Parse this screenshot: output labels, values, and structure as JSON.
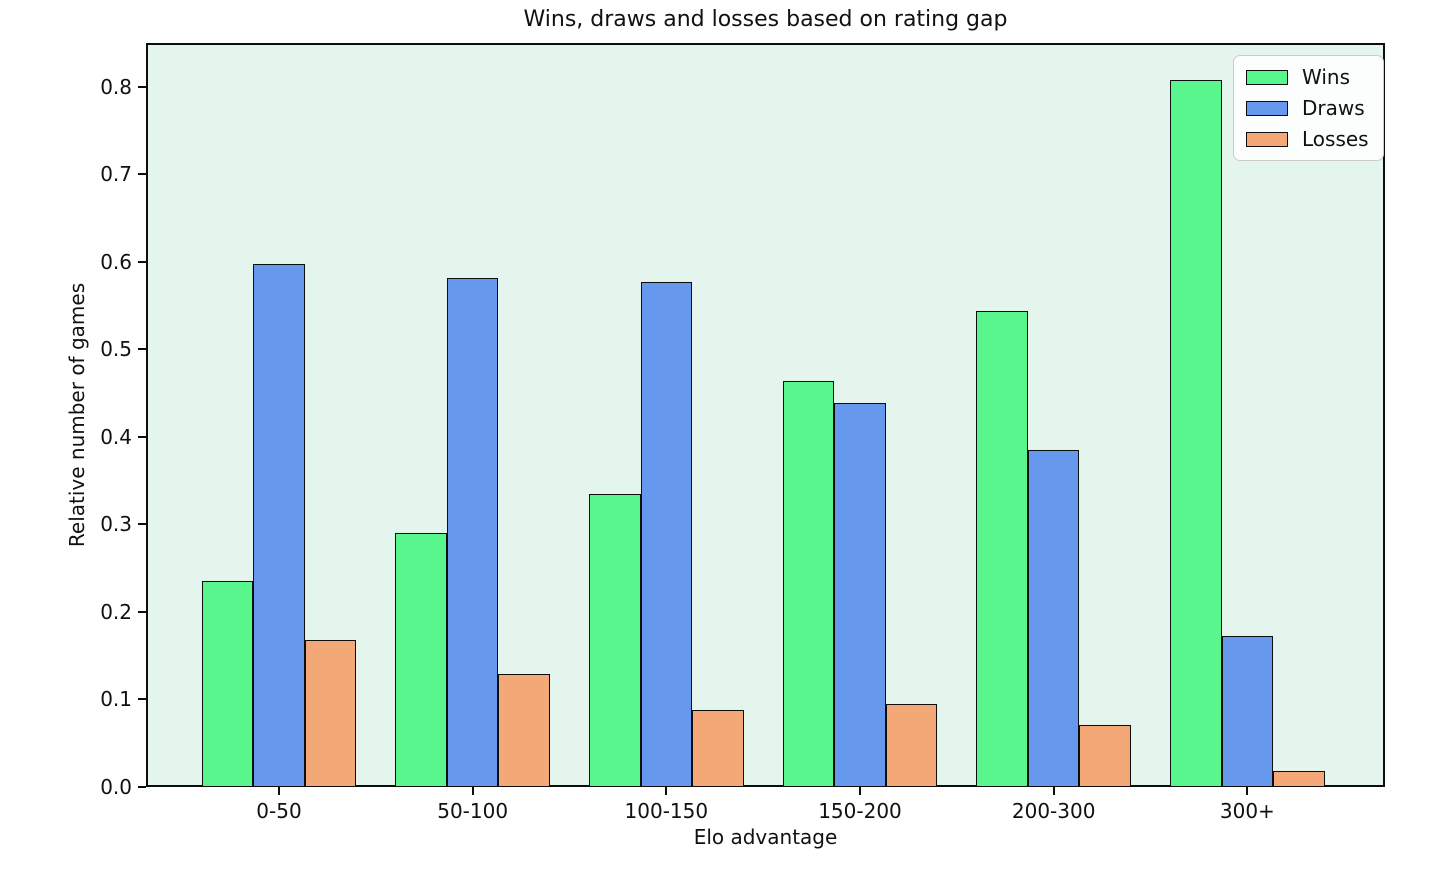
{
  "chart_data": {
    "type": "bar",
    "title": "Wins, draws and losses based on rating gap",
    "xlabel": "Elo advantage",
    "ylabel": "Relative number of games",
    "categories": [
      "0-50",
      "50-100",
      "100-150",
      "150-200",
      "200-300",
      "300+"
    ],
    "series": [
      {
        "name": "Wins",
        "color": "#58F68C",
        "values": [
          0.235,
          0.29,
          0.335,
          0.464,
          0.544,
          0.808
        ]
      },
      {
        "name": "Draws",
        "color": "#6699EE",
        "values": [
          0.598,
          0.581,
          0.577,
          0.439,
          0.385,
          0.172
        ]
      },
      {
        "name": "Losses",
        "color": "#F4A878",
        "values": [
          0.168,
          0.129,
          0.088,
          0.095,
          0.071,
          0.018
        ]
      }
    ],
    "ylim": [
      0,
      0.85
    ],
    "yticks": [
      0.0,
      0.1,
      0.2,
      0.3,
      0.4,
      0.5,
      0.6,
      0.7,
      0.8
    ],
    "ytick_labels": [
      "0.0",
      "0.1",
      "0.2",
      "0.3",
      "0.4",
      "0.5",
      "0.6",
      "0.7",
      "0.8"
    ],
    "legend_position": "upper right",
    "grid": false,
    "plot_bg_color": "#E4F5EE",
    "bar_edge_color": "#0d0d0d"
  }
}
